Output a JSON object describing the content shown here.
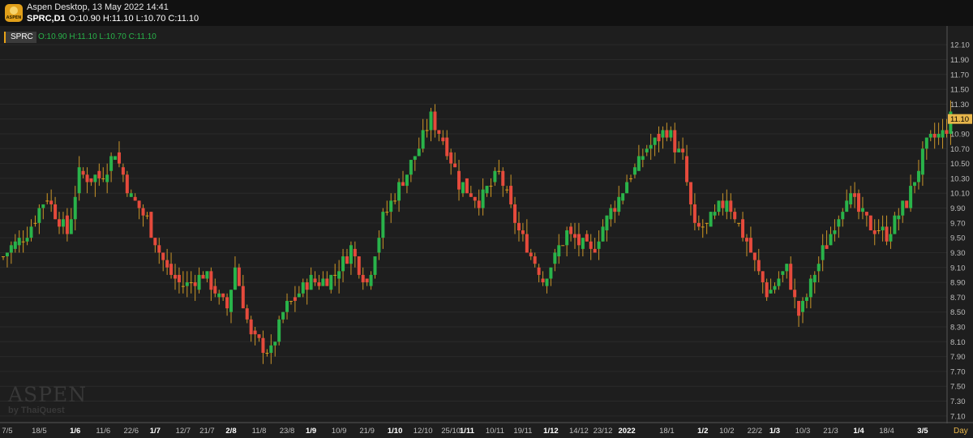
{
  "header": {
    "app_title": "Aspen Desktop, 13 May 2022 14:41",
    "symbol_tf": "SPRC,D1",
    "ohlc": "O:10.90 H:11.10 L:10.70 C:11.10"
  },
  "legend": {
    "symbol": "SPRC",
    "ohlc": "O:10.90 H:11.10 L:10.70 C:11.10"
  },
  "watermark": {
    "brand": "ASPEN",
    "by": "by ThaiQuest"
  },
  "timeframe_label": "Day",
  "colors": {
    "up": "#29b34a",
    "down": "#e54a3c",
    "doji": "#d69b1e",
    "last_price_bg": "#e8b64b",
    "grid": "#2a2a2a",
    "axis_text": "#bdbdbd"
  },
  "chart_data": {
    "type": "candlestick",
    "symbol": "SPRC",
    "timeframe": "D1",
    "ylim": [
      7.0,
      12.2
    ],
    "yticks": [
      "12.10",
      "11.90",
      "11.70",
      "11.50",
      "11.30",
      "11.10",
      "10.90",
      "10.70",
      "10.50",
      "10.30",
      "10.10",
      "9.90",
      "9.70",
      "9.50",
      "9.30",
      "9.10",
      "8.90",
      "8.70",
      "8.50",
      "8.30",
      "8.10",
      "7.90",
      "7.70",
      "7.50",
      "7.30",
      "7.10"
    ],
    "xticks": [
      {
        "label": "7/5",
        "i": 1,
        "bold": false
      },
      {
        "label": "18/5",
        "i": 9,
        "bold": false
      },
      {
        "label": "1/6",
        "i": 18,
        "bold": true
      },
      {
        "label": "11/6",
        "i": 25,
        "bold": false
      },
      {
        "label": "22/6",
        "i": 32,
        "bold": false
      },
      {
        "label": "1/7",
        "i": 38,
        "bold": true
      },
      {
        "label": "12/7",
        "i": 45,
        "bold": false
      },
      {
        "label": "21/7",
        "i": 51,
        "bold": false
      },
      {
        "label": "2/8",
        "i": 57,
        "bold": true
      },
      {
        "label": "11/8",
        "i": 64,
        "bold": false
      },
      {
        "label": "23/8",
        "i": 71,
        "bold": false
      },
      {
        "label": "1/9",
        "i": 77,
        "bold": true
      },
      {
        "label": "10/9",
        "i": 84,
        "bold": false
      },
      {
        "label": "21/9",
        "i": 91,
        "bold": false
      },
      {
        "label": "1/10",
        "i": 98,
        "bold": true
      },
      {
        "label": "12/10",
        "i": 105,
        "bold": false
      },
      {
        "label": "25/10",
        "i": 112,
        "bold": false
      },
      {
        "label": "1/11",
        "i": 116,
        "bold": true
      },
      {
        "label": "10/11",
        "i": 123,
        "bold": false
      },
      {
        "label": "19/11",
        "i": 130,
        "bold": false
      },
      {
        "label": "1/12",
        "i": 137,
        "bold": true
      },
      {
        "label": "14/12",
        "i": 144,
        "bold": false
      },
      {
        "label": "23/12",
        "i": 150,
        "bold": false
      },
      {
        "label": "2022",
        "i": 156,
        "bold": true
      },
      {
        "label": "18/1",
        "i": 166,
        "bold": false
      },
      {
        "label": "1/2",
        "i": 175,
        "bold": true
      },
      {
        "label": "10/2",
        "i": 181,
        "bold": false
      },
      {
        "label": "22/2",
        "i": 188,
        "bold": false
      },
      {
        "label": "1/3",
        "i": 193,
        "bold": true
      },
      {
        "label": "10/3",
        "i": 200,
        "bold": false
      },
      {
        "label": "21/3",
        "i": 207,
        "bold": false
      },
      {
        "label": "1/4",
        "i": 214,
        "bold": true
      },
      {
        "label": "18/4",
        "i": 221,
        "bold": false
      },
      {
        "label": "3/5",
        "i": 230,
        "bold": true
      }
    ],
    "last_price": "11.10",
    "waypoints": [
      {
        "i": 0,
        "p": 9.25
      },
      {
        "i": 6,
        "p": 9.6
      },
      {
        "i": 11,
        "p": 10.05
      },
      {
        "i": 16,
        "p": 9.55
      },
      {
        "i": 19,
        "p": 10.35
      },
      {
        "i": 24,
        "p": 10.3
      },
      {
        "i": 28,
        "p": 10.65
      },
      {
        "i": 32,
        "p": 10.05
      },
      {
        "i": 36,
        "p": 9.75
      },
      {
        "i": 41,
        "p": 9.05
      },
      {
        "i": 45,
        "p": 8.85
      },
      {
        "i": 50,
        "p": 9.0
      },
      {
        "i": 56,
        "p": 8.55
      },
      {
        "i": 58,
        "p": 9.1
      },
      {
        "i": 62,
        "p": 8.15
      },
      {
        "i": 67,
        "p": 7.95
      },
      {
        "i": 70,
        "p": 8.5
      },
      {
        "i": 76,
        "p": 8.9
      },
      {
        "i": 82,
        "p": 8.95
      },
      {
        "i": 87,
        "p": 9.35
      },
      {
        "i": 91,
        "p": 8.9
      },
      {
        "i": 95,
        "p": 9.75
      },
      {
        "i": 102,
        "p": 10.5
      },
      {
        "i": 107,
        "p": 11.1
      },
      {
        "i": 110,
        "p": 10.85
      },
      {
        "i": 114,
        "p": 10.25
      },
      {
        "i": 119,
        "p": 10.0
      },
      {
        "i": 124,
        "p": 10.35
      },
      {
        "i": 129,
        "p": 9.6
      },
      {
        "i": 135,
        "p": 8.95
      },
      {
        "i": 141,
        "p": 9.55
      },
      {
        "i": 147,
        "p": 9.3
      },
      {
        "i": 151,
        "p": 9.75
      },
      {
        "i": 156,
        "p": 10.25
      },
      {
        "i": 161,
        "p": 10.7
      },
      {
        "i": 166,
        "p": 10.95
      },
      {
        "i": 170,
        "p": 10.55
      },
      {
        "i": 173,
        "p": 9.6
      },
      {
        "i": 176,
        "p": 9.65
      },
      {
        "i": 181,
        "p": 10.05
      },
      {
        "i": 186,
        "p": 9.45
      },
      {
        "i": 191,
        "p": 8.75
      },
      {
        "i": 196,
        "p": 9.1
      },
      {
        "i": 199,
        "p": 8.45
      },
      {
        "i": 205,
        "p": 9.3
      },
      {
        "i": 211,
        "p": 10.1
      },
      {
        "i": 216,
        "p": 9.7
      },
      {
        "i": 221,
        "p": 9.55
      },
      {
        "i": 226,
        "p": 10.0
      },
      {
        "i": 231,
        "p": 10.75
      },
      {
        "i": 235,
        "p": 10.9
      },
      {
        "i": 237,
        "p": 11.1
      }
    ],
    "series_count": 238
  }
}
